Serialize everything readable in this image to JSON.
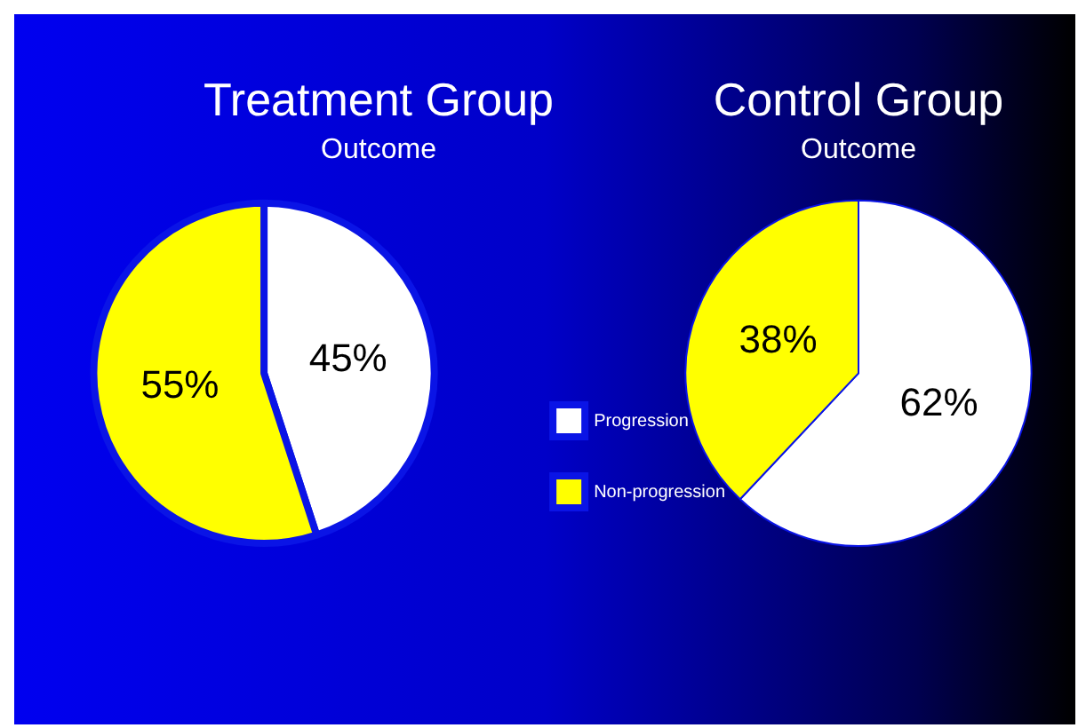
{
  "chart_data": [
    {
      "type": "pie",
      "title": "Treatment Group",
      "subtitle": "Outcome",
      "categories": [
        "Progression",
        "Non-progression"
      ],
      "values": [
        45,
        55
      ],
      "colors": [
        "#ffffff",
        "#ffff00"
      ],
      "value_labels": [
        "45%",
        "55%"
      ],
      "legend": "right"
    },
    {
      "type": "pie",
      "title": "Control Group",
      "subtitle": "Outcome",
      "categories": [
        null,
        null
      ],
      "values": [
        62,
        38
      ],
      "colors": [
        "#ffffff",
        "#ffff00"
      ],
      "value_labels": [
        "62%",
        "38%"
      ],
      "legend": false
    }
  ]
}
